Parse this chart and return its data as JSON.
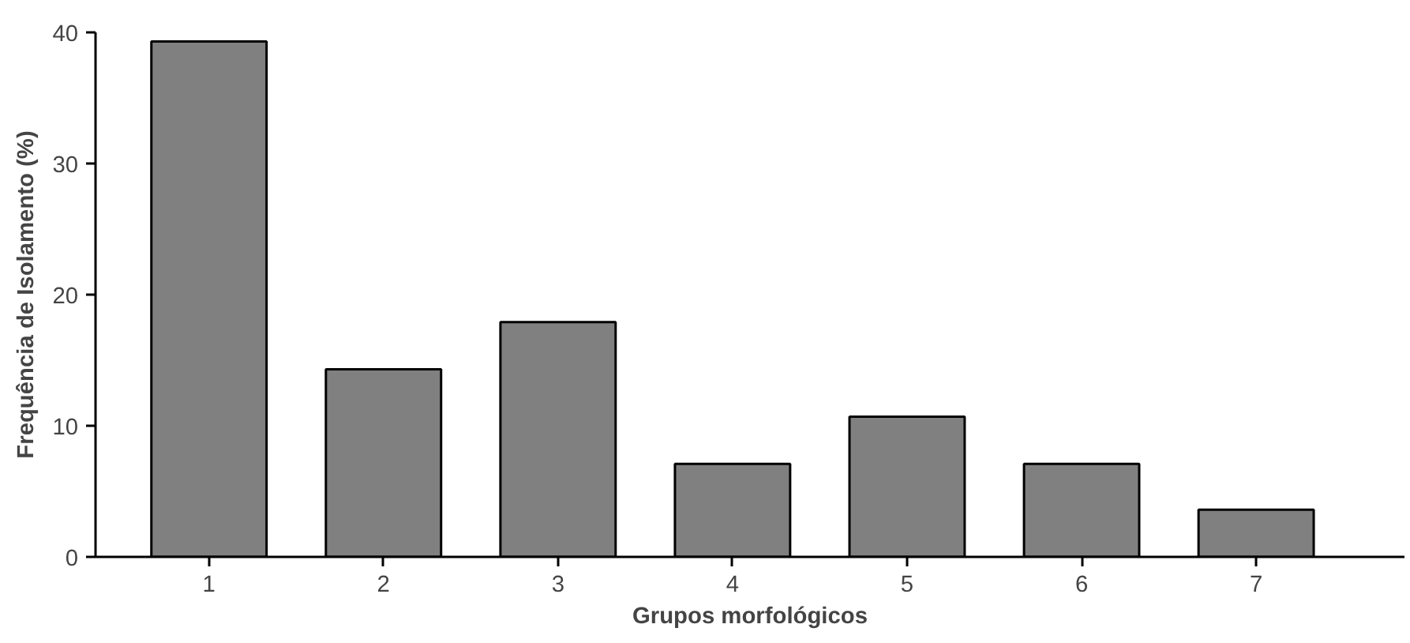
{
  "chart_data": {
    "type": "bar",
    "xlabel": "Grupos morfológicos",
    "ylabel": "Frequência de Isolamento (%)",
    "categories": [
      "1",
      "2",
      "3",
      "4",
      "5",
      "6",
      "7"
    ],
    "values": [
      39.3,
      14.3,
      17.9,
      7.1,
      10.7,
      7.1,
      3.6
    ],
    "color": "#808080",
    "ylim": [
      0,
      40
    ],
    "yticks": [
      0,
      10,
      20,
      30,
      40
    ],
    "grid": false
  }
}
